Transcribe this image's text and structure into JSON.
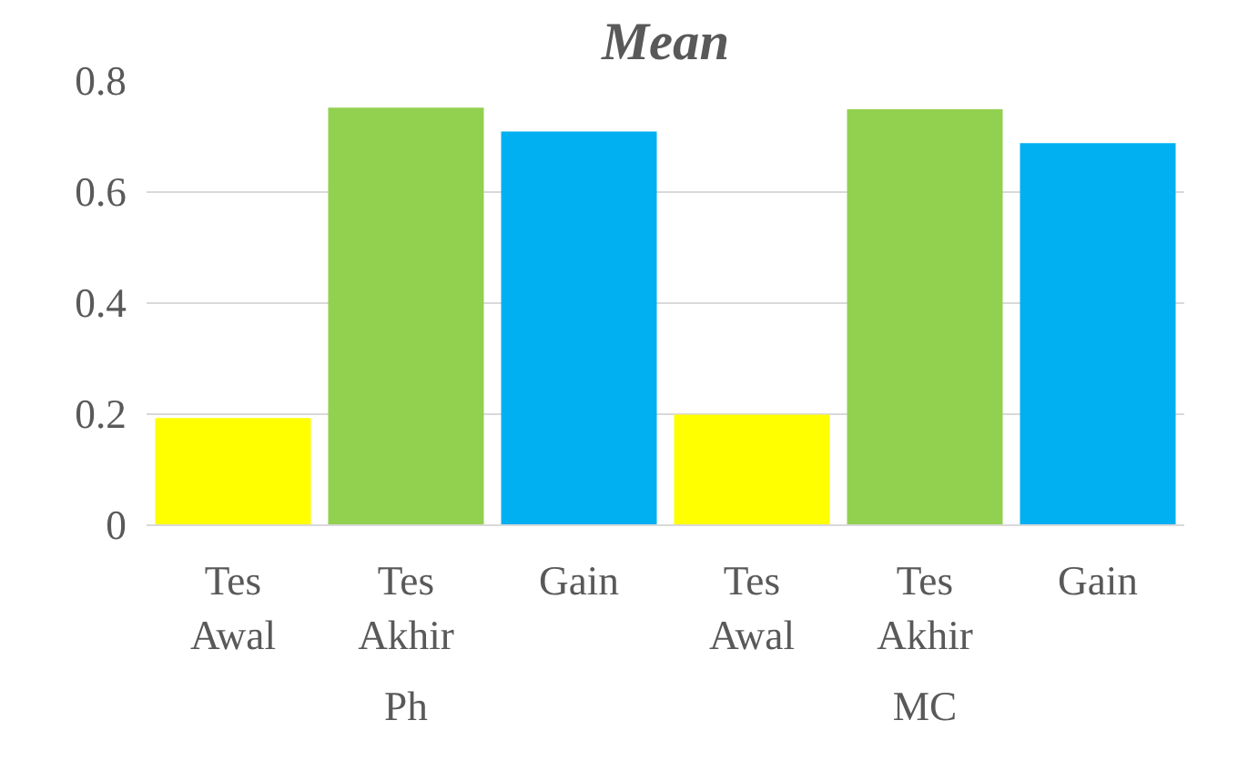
{
  "chart_data": {
    "type": "bar",
    "title": "Mean",
    "categories": [
      "Tes Awal",
      "Tes Akhir",
      "Gain",
      "Tes Awal",
      "Tes Akhir",
      "Gain"
    ],
    "values": [
      0.193,
      0.752,
      0.709,
      0.199,
      0.749,
      0.688
    ],
    "colors": [
      "#ffff00",
      "#92d050",
      "#00b0f0",
      "#ffff00",
      "#92d050",
      "#00b0f0"
    ],
    "annotations": [
      "Ph",
      "MC"
    ],
    "ylim": [
      0,
      0.8
    ],
    "yticks": [
      0,
      0.2,
      0.4,
      0.6,
      0.8
    ],
    "grid": "y"
  }
}
